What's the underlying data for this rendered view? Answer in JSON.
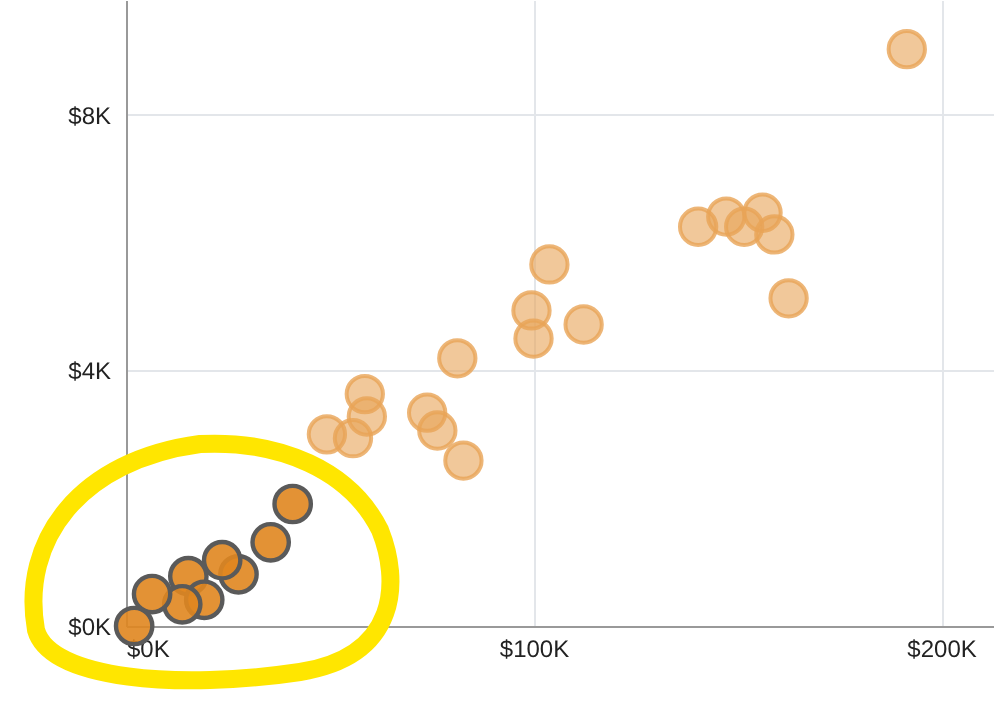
{
  "chart_data": {
    "type": "scatter",
    "xlim": [
      0,
      213
    ],
    "ylim": [
      0,
      9.8
    ],
    "xticks": [
      {
        "value": 0,
        "label": "$0K"
      },
      {
        "value": 100,
        "label": "$100K"
      },
      {
        "value": 200,
        "label": "$200K"
      }
    ],
    "yticks": [
      {
        "value": 0,
        "label": "$0K"
      },
      {
        "value": 4,
        "label": "$4K"
      },
      {
        "value": 8,
        "label": "$8K"
      }
    ],
    "grid": true,
    "marker": "circle",
    "series": [
      {
        "color": "#e8a456",
        "x": [
          191.6,
          140.4,
          147.3,
          151.7,
          156.2,
          159.1,
          162.6,
          103.9,
          99.5,
          100,
          112.3,
          81.3,
          58.6,
          59.1,
          49.3,
          55.7,
          73.9,
          76.4,
          82.8
        ],
        "values": [
          9.03,
          6.25,
          6.41,
          6.25,
          6.47,
          6.13,
          5.13,
          5.66,
          4.94,
          4.5,
          4.72,
          4.19,
          3.63,
          3.28,
          3.0,
          2.94,
          3.34,
          3.06,
          2.59
        ]
      },
      {
        "color": "#e0861f",
        "x": [
          40.9,
          35.5,
          27.6,
          23.6,
          15.3,
          19.2,
          13.8,
          6.4,
          2.0
        ],
        "values": [
          1.91,
          1.31,
          0.81,
          1.03,
          0.78,
          0.41,
          0.34,
          0.5,
          0.0
        ]
      }
    ]
  }
}
